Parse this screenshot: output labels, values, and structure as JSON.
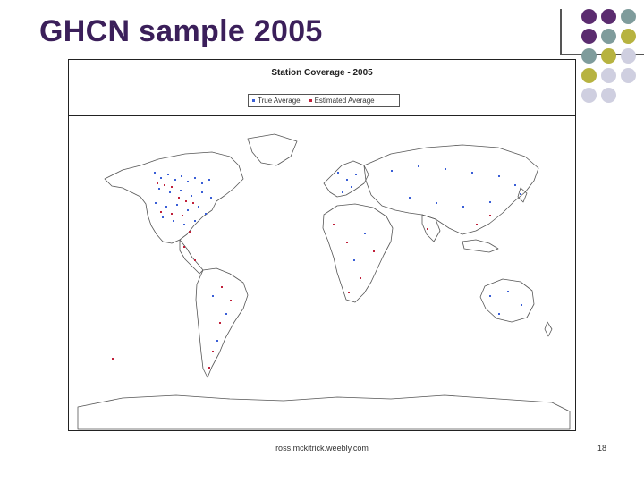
{
  "slide": {
    "title": "GHCN sample 2005",
    "footer": "ross.mckitrick.weebly.com",
    "page_number": "18"
  },
  "figure": {
    "title": "Station Coverage - 2005",
    "legend": [
      {
        "label": "True Average",
        "color": "#3a5fd6"
      },
      {
        "label": "Estimated Average",
        "color": "#c0203a"
      }
    ]
  },
  "theme": {
    "title_color": "#3b1f5a",
    "deco_dot_colors": [
      "#5b2c6f",
      "#7f9c9c",
      "#b7b340",
      "#cfcfe0"
    ]
  }
}
